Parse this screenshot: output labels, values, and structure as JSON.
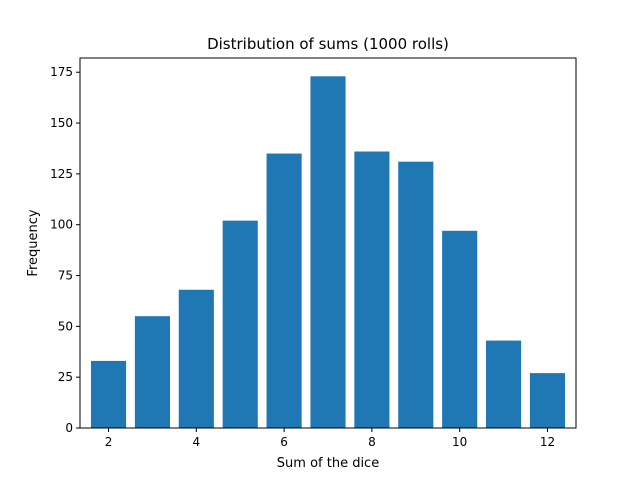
{
  "chart_data": {
    "type": "bar",
    "title": "Distribution of sums (1000 rolls)",
    "xlabel": "Sum of the dice",
    "ylabel": "Frequency",
    "x": [
      2,
      3,
      4,
      5,
      6,
      7,
      8,
      9,
      10,
      11,
      12
    ],
    "values": [
      33,
      55,
      68,
      102,
      135,
      173,
      136,
      131,
      97,
      43,
      27
    ],
    "xlim": [
      1.35,
      12.65
    ],
    "ylim": [
      0,
      182
    ],
    "xticks": [
      2,
      4,
      6,
      8,
      10,
      12
    ],
    "yticks": [
      0,
      25,
      50,
      75,
      100,
      125,
      150,
      175
    ],
    "bar_color": "#1f77b4",
    "grid": false
  }
}
